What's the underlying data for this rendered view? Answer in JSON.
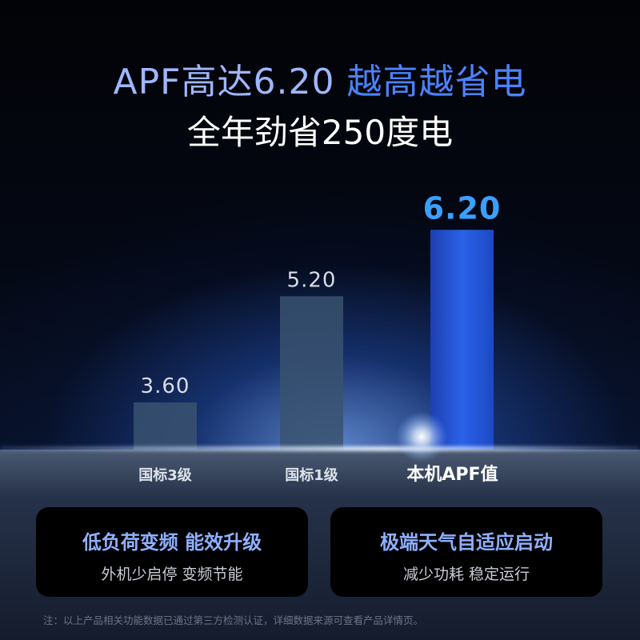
{
  "headline": {
    "part1": "APF高达6.20",
    "part2": "越高越省电"
  },
  "subheadline": "全年劲省250度电",
  "chart_data": {
    "type": "bar",
    "categories": [
      "国标3级",
      "国标1级",
      "本机APF值"
    ],
    "values": [
      3.6,
      5.2,
      6.2
    ],
    "value_labels": [
      "3.60",
      "5.20",
      "6.20"
    ],
    "colors": {
      "standard": "#3a5270",
      "highlight": "#2457d8",
      "highlight_label": "#3aa0ff"
    }
  },
  "cards": [
    {
      "title": "低负荷变频 能效升级",
      "subtitle": "外机少启停 变频节能"
    },
    {
      "title": "极端天气自适应启动",
      "subtitle": "减少功耗 稳定运行"
    }
  ],
  "footnote": "注：以上产品相关功能数据已通过第三方检测认证，详细数据来源可查看产品详情页。"
}
